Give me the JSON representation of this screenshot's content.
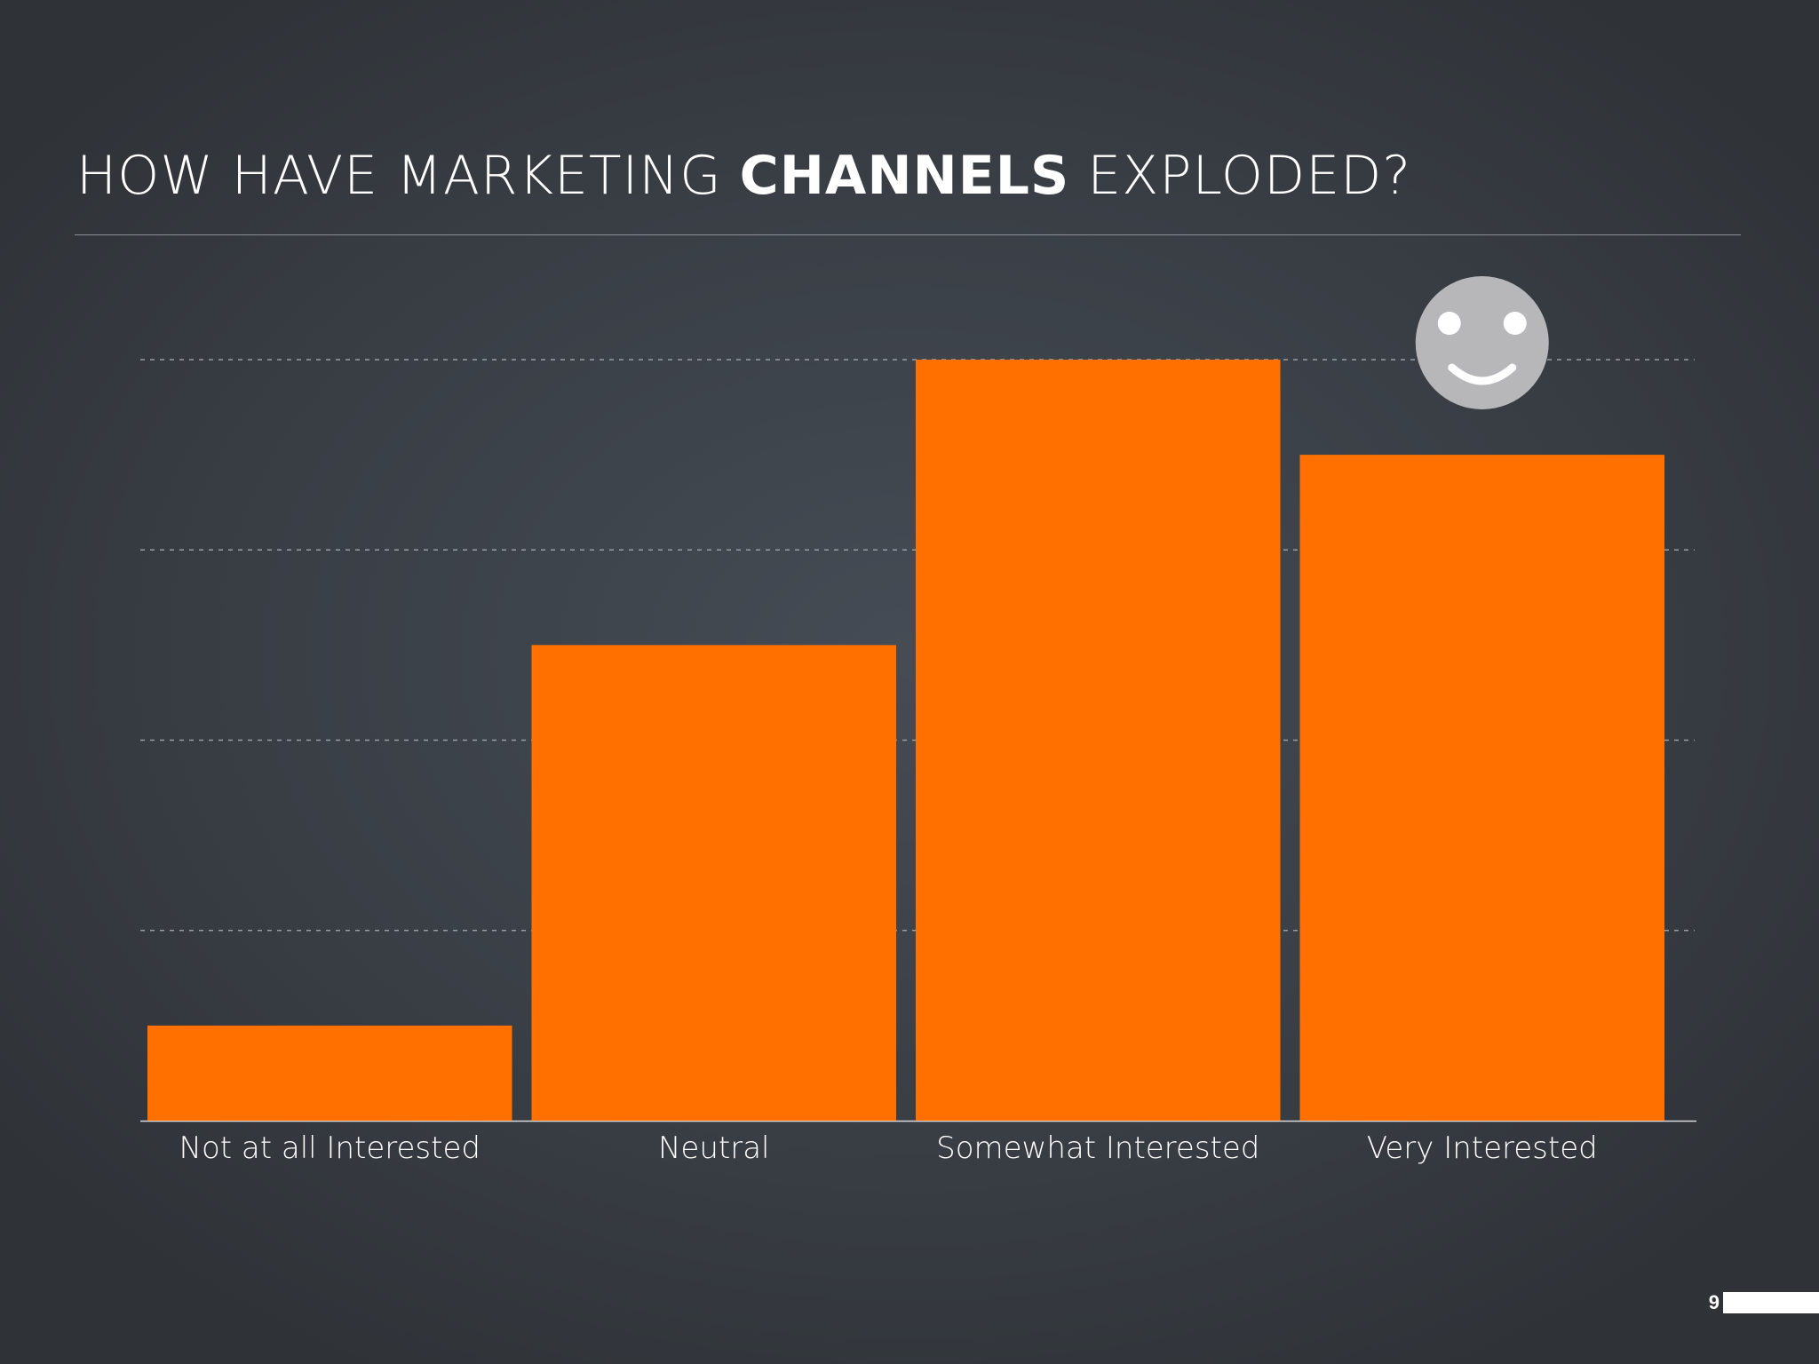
{
  "slide": {
    "title_part1": "HOW HAVE MARKETING ",
    "title_emph": "CHANNELS",
    "title_part2": " EXPLODED?",
    "page_number": "9"
  },
  "colors": {
    "background": "#3d4249",
    "bar": "#ff7000",
    "text": "#ffffff",
    "gridline": "#9a9ea4",
    "smiley": "#b7b7b9"
  },
  "icons": {
    "bar_annotation": "smiley-face-icon"
  },
  "chart_data": {
    "type": "bar",
    "title": "",
    "xlabel": "",
    "ylabel": "",
    "categories": [
      "Not at all Interested",
      "Neutral",
      "Somewhat Interested",
      "Very Interested"
    ],
    "values": [
      0.5,
      2.5,
      4.0,
      3.5
    ],
    "ylim": [
      0,
      4
    ],
    "yticks": [
      0,
      1,
      2,
      3,
      4
    ],
    "grid": true,
    "legend": "none",
    "y_tick_labels_shown": false,
    "annotation": {
      "category": "Very Interested",
      "icon": "smiley-face-icon"
    }
  }
}
